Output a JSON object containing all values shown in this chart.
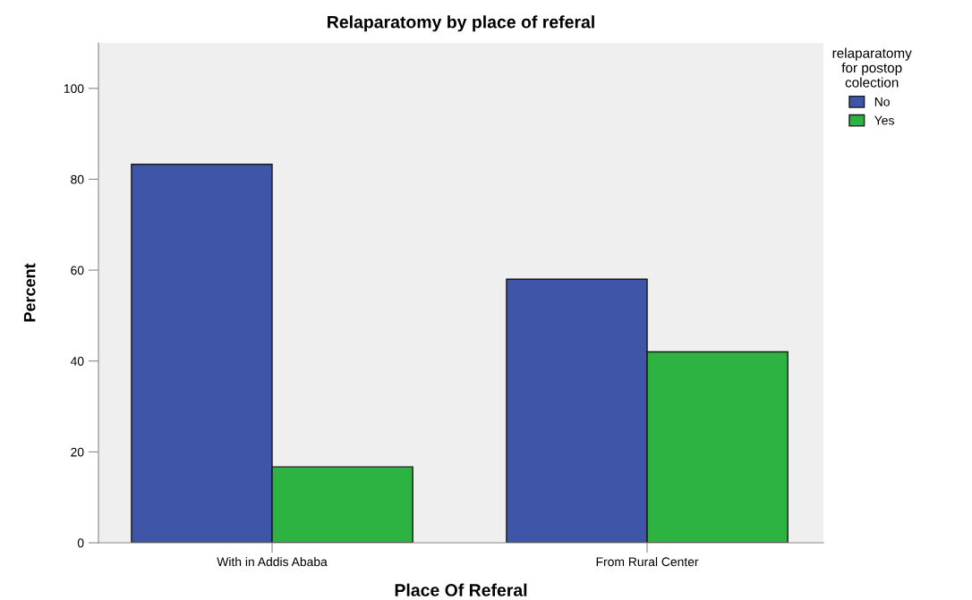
{
  "chart_data": {
    "type": "bar",
    "title": "Relaparatomy by place of referal",
    "xlabel": "Place Of Referal",
    "ylabel": "Percent",
    "categories": [
      "With in Addis Ababa",
      "From Rural Center"
    ],
    "series": [
      {
        "name": "No",
        "color": "#3f56a8",
        "values": [
          83.3,
          58
        ]
      },
      {
        "name": "Yes",
        "color": "#2db341",
        "values": [
          16.7,
          42
        ]
      }
    ],
    "legend_title": "relaparatomy\nfor postop\ncolection",
    "legend": "right",
    "ylim": [
      0,
      110
    ],
    "yticks": [
      0,
      20,
      40,
      60,
      80,
      100
    ],
    "grid": false
  }
}
